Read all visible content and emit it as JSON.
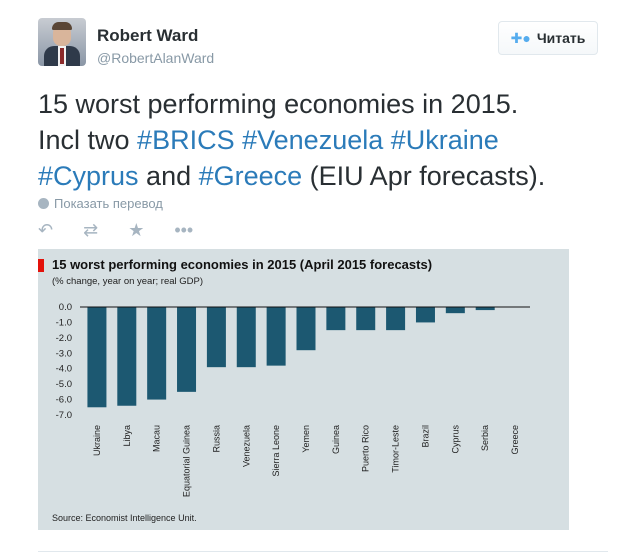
{
  "user": {
    "name": "Robert Ward",
    "handle": "@RobertAlanWard",
    "follow_label": "Читать"
  },
  "tweet": {
    "line1": "15 worst performing economies in 2015.",
    "line2_prefix": "Incl two ",
    "hashtag_brics": "#BRICS",
    "hashtag_venezuela": "#Venezuela",
    "hashtag_ukraine": "#Ukraine",
    "hashtag_cyprus": "#Cyprus",
    "and_word": " and ",
    "hashtag_greece": "#Greece",
    "suffix": " (EIU Apr forecasts).",
    "translate_label": "Показать перевод"
  },
  "actions": {
    "reply_icon": "reply-icon",
    "retweet_icon": "retweet-icon",
    "favorite_icon": "star-icon",
    "more_icon": "more-icon"
  },
  "chart_data": {
    "type": "bar",
    "title": "15 worst performing  economies  in 2015 (April 2015 forecasts)",
    "subtitle": "(% change, year on year; real GDP)",
    "source": "Source: Economist Intelligence Unit.",
    "categories": [
      "Ukraine",
      "Libya",
      "Macau",
      "Equatorial Guinea",
      "Russia",
      "Venezuela",
      "Sierra Leone",
      "Yemen",
      "Guinea",
      "Puerto Rico",
      "Timor-Leste",
      "Brazil",
      "Cyprus",
      "Serbia",
      "Greece"
    ],
    "values": [
      -6.5,
      -6.4,
      -6.0,
      -5.5,
      -3.9,
      -3.9,
      -3.8,
      -2.8,
      -1.5,
      -1.5,
      -1.5,
      -1.0,
      -0.4,
      -0.2,
      0.0
    ],
    "yticks": [
      "0.0",
      "-1.0",
      "-2.0",
      "-3.0",
      "-4.0",
      "-5.0",
      "-6.0",
      "-7.0"
    ],
    "ylim": [
      -7,
      0
    ],
    "bar_color": "#1c5871",
    "background": "#d6dfe2",
    "accent": "#e3120b"
  }
}
